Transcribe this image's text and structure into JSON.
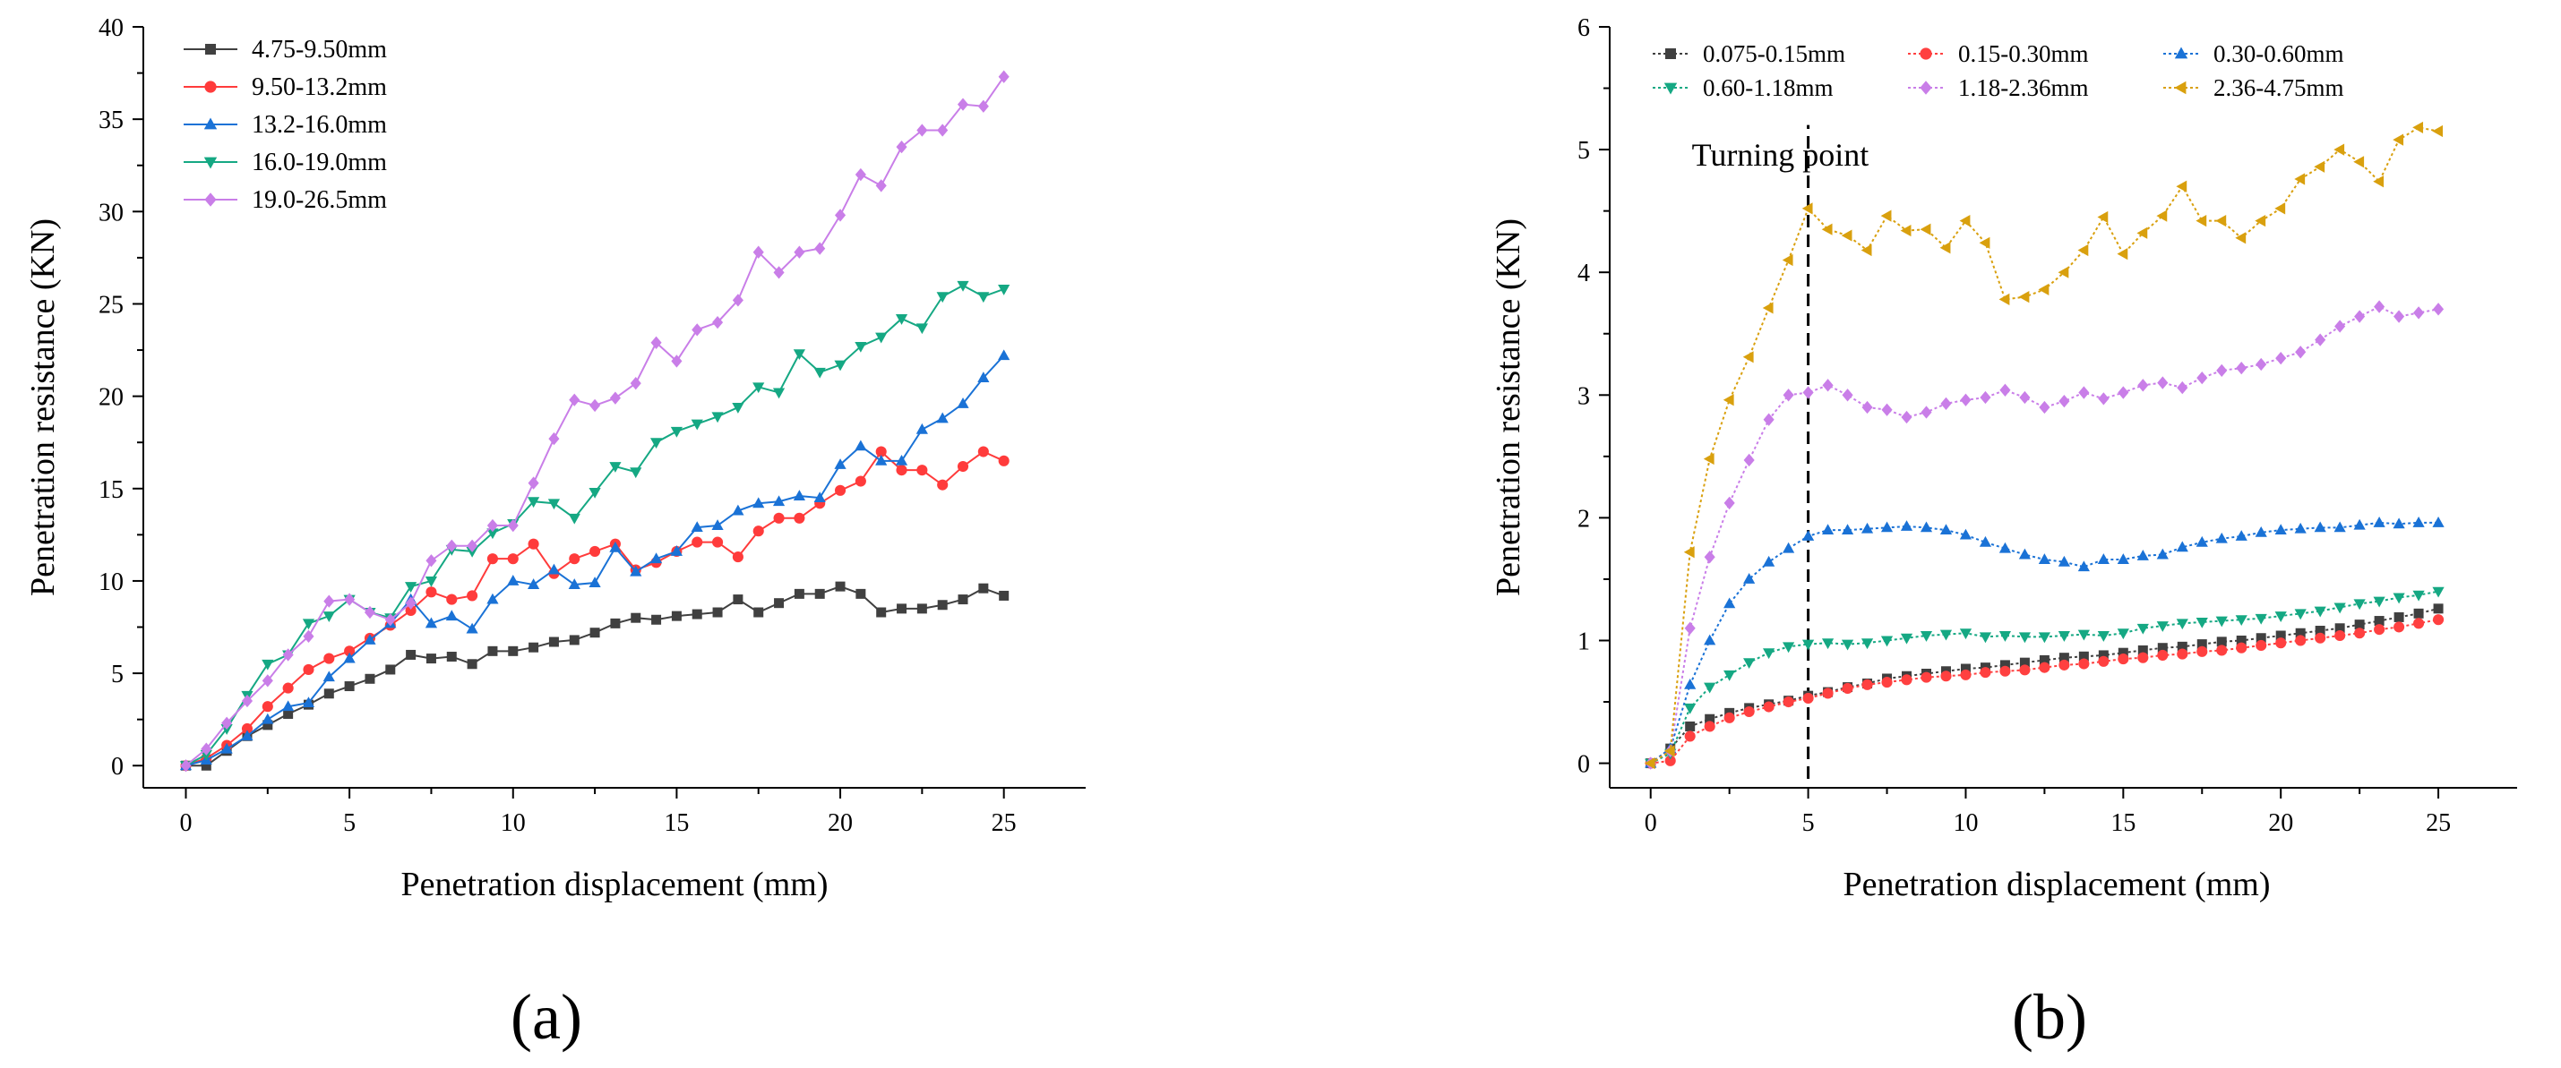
{
  "panels": [
    {
      "label": "(a)"
    },
    {
      "label": "(b)"
    }
  ],
  "chart_data": [
    {
      "type": "line",
      "title": "",
      "xlabel": "Penetration displacement (mm)",
      "ylabel": "Penetration resistance (KN)",
      "xlim": [
        -1.3,
        27.5
      ],
      "ylim": [
        -1.2,
        40
      ],
      "xticks": [
        0,
        5,
        10,
        15,
        20,
        25
      ],
      "yticks": [
        0,
        5,
        10,
        15,
        20,
        25,
        30,
        35,
        40
      ],
      "grid": false,
      "legend_position": "top-left",
      "x": [
        0,
        0.625,
        1.25,
        1.875,
        2.5,
        3.125,
        3.75,
        4.375,
        5,
        5.625,
        6.25,
        6.875,
        7.5,
        8.125,
        8.75,
        9.375,
        10,
        10.625,
        11.25,
        11.875,
        12.5,
        13.125,
        13.75,
        14.375,
        15,
        15.625,
        16.25,
        16.875,
        17.5,
        18.125,
        18.75,
        19.375,
        20,
        20.625,
        21.25,
        21.875,
        22.5,
        23.125,
        23.75,
        24.375,
        25
      ],
      "series": [
        {
          "name": "4.75-9.50mm",
          "color": "#404040",
          "marker": "square",
          "values": [
            0,
            0,
            0.8,
            1.6,
            2.2,
            2.8,
            3.3,
            3.9,
            4.3,
            4.7,
            5.2,
            6.0,
            5.8,
            5.9,
            5.5,
            6.2,
            6.2,
            6.4,
            6.7,
            6.8,
            7.2,
            7.7,
            8.0,
            7.9,
            8.1,
            8.2,
            8.3,
            9.0,
            8.3,
            8.8,
            9.3,
            9.3,
            9.7,
            9.3,
            8.3,
            8.5,
            8.5,
            8.7,
            9.0,
            9.6,
            9.2
          ]
        },
        {
          "name": "9.50-13.2mm",
          "color": "#ff3b3b",
          "marker": "circle",
          "values": [
            0,
            0.4,
            1.1,
            2.0,
            3.2,
            4.2,
            5.2,
            5.8,
            6.2,
            6.9,
            7.6,
            8.4,
            9.4,
            9.0,
            9.2,
            11.2,
            11.2,
            12.0,
            10.4,
            11.2,
            11.6,
            12.0,
            10.6,
            11.0,
            11.6,
            12.1,
            12.1,
            11.3,
            12.7,
            13.4,
            13.4,
            14.2,
            14.9,
            15.4,
            17.0,
            16.0,
            16.0,
            15.2,
            16.2,
            17.0,
            16.5
          ]
        },
        {
          "name": "13.2-16.0mm",
          "color": "#1a72d6",
          "marker": "triangle-up",
          "values": [
            0,
            0.3,
            0.9,
            1.6,
            2.5,
            3.2,
            3.4,
            4.8,
            5.8,
            6.8,
            7.7,
            9.0,
            7.7,
            8.1,
            7.4,
            9.0,
            10.0,
            9.8,
            10.6,
            9.8,
            9.9,
            11.8,
            10.5,
            11.2,
            11.6,
            12.9,
            13.0,
            13.8,
            14.2,
            14.3,
            14.6,
            14.5,
            16.3,
            17.3,
            16.5,
            16.5,
            18.2,
            18.8,
            19.6,
            21.0,
            22.2
          ]
        },
        {
          "name": "16.0-19.0mm",
          "color": "#15a883",
          "marker": "triangle-down",
          "values": [
            0,
            0.6,
            2.0,
            3.8,
            5.5,
            6.0,
            7.7,
            8.1,
            9.0,
            8.3,
            8.0,
            9.7,
            10.0,
            11.7,
            11.6,
            12.6,
            13.1,
            14.3,
            14.2,
            13.4,
            14.8,
            16.2,
            15.9,
            17.5,
            18.1,
            18.5,
            18.9,
            19.4,
            20.5,
            20.2,
            22.3,
            21.3,
            21.7,
            22.7,
            23.2,
            24.2,
            23.7,
            25.4,
            26.0,
            25.4,
            25.8
          ]
        },
        {
          "name": "19.0-26.5mm",
          "color": "#c97ee8",
          "marker": "diamond",
          "values": [
            0,
            0.9,
            2.3,
            3.5,
            4.6,
            6.0,
            7.0,
            8.9,
            9.0,
            8.3,
            7.9,
            8.8,
            11.1,
            11.9,
            11.9,
            13.0,
            13.0,
            15.3,
            17.7,
            19.8,
            19.5,
            19.9,
            20.7,
            22.9,
            21.9,
            23.6,
            24.0,
            25.2,
            27.8,
            26.7,
            27.8,
            28.0,
            29.8,
            32.0,
            31.4,
            33.5,
            34.4,
            34.4,
            35.8,
            35.7,
            37.3
          ]
        }
      ]
    },
    {
      "type": "line",
      "title": "",
      "xlabel": "Penetration displacement (mm)",
      "ylabel": "Penetration resistance (KN)",
      "xlim": [
        -1.3,
        27.5
      ],
      "ylim": [
        -0.2,
        6
      ],
      "xticks": [
        0,
        5,
        10,
        15,
        20,
        25
      ],
      "yticks": [
        0,
        1,
        2,
        3,
        4,
        5,
        6
      ],
      "grid": false,
      "legend_position": "top",
      "annotation": {
        "text": "Turning point",
        "x": 5
      },
      "x": [
        0,
        0.625,
        1.25,
        1.875,
        2.5,
        3.125,
        3.75,
        4.375,
        5,
        5.625,
        6.25,
        6.875,
        7.5,
        8.125,
        8.75,
        9.375,
        10,
        10.625,
        11.25,
        11.875,
        12.5,
        13.125,
        13.75,
        14.375,
        15,
        15.625,
        16.25,
        16.875,
        17.5,
        18.125,
        18.75,
        19.375,
        20,
        20.625,
        21.25,
        21.875,
        22.5,
        23.125,
        23.75,
        24.375,
        25
      ],
      "series": [
        {
          "name": "0.075-0.15mm",
          "color": "#404040",
          "marker": "square",
          "values": [
            0,
            0.12,
            0.3,
            0.36,
            0.41,
            0.45,
            0.48,
            0.51,
            0.55,
            0.58,
            0.62,
            0.65,
            0.69,
            0.71,
            0.73,
            0.75,
            0.77,
            0.78,
            0.8,
            0.82,
            0.84,
            0.86,
            0.87,
            0.88,
            0.9,
            0.92,
            0.94,
            0.95,
            0.97,
            0.99,
            1.0,
            1.02,
            1.04,
            1.06,
            1.08,
            1.1,
            1.13,
            1.16,
            1.19,
            1.22,
            1.26
          ]
        },
        {
          "name": "0.15-0.30mm",
          "color": "#ff4040",
          "marker": "circle",
          "values": [
            0,
            0.02,
            0.22,
            0.3,
            0.37,
            0.42,
            0.46,
            0.5,
            0.53,
            0.57,
            0.61,
            0.64,
            0.66,
            0.68,
            0.7,
            0.71,
            0.72,
            0.74,
            0.75,
            0.76,
            0.78,
            0.8,
            0.81,
            0.83,
            0.85,
            0.86,
            0.88,
            0.89,
            0.91,
            0.92,
            0.94,
            0.96,
            0.98,
            1.0,
            1.02,
            1.04,
            1.06,
            1.09,
            1.11,
            1.14,
            1.17
          ]
        },
        {
          "name": "0.30-0.60mm",
          "color": "#1a72d6",
          "marker": "triangle-up",
          "values": [
            0,
            0.12,
            0.64,
            1.0,
            1.3,
            1.5,
            1.64,
            1.75,
            1.85,
            1.9,
            1.9,
            1.91,
            1.92,
            1.93,
            1.92,
            1.9,
            1.86,
            1.8,
            1.75,
            1.7,
            1.66,
            1.64,
            1.6,
            1.66,
            1.66,
            1.69,
            1.7,
            1.76,
            1.8,
            1.83,
            1.85,
            1.88,
            1.9,
            1.91,
            1.92,
            1.92,
            1.94,
            1.96,
            1.95,
            1.96,
            1.96
          ]
        },
        {
          "name": "0.60-1.18mm",
          "color": "#15a883",
          "marker": "triangle-down",
          "values": [
            0,
            0.08,
            0.45,
            0.62,
            0.72,
            0.82,
            0.9,
            0.95,
            0.97,
            0.98,
            0.97,
            0.98,
            1.0,
            1.02,
            1.04,
            1.05,
            1.06,
            1.03,
            1.04,
            1.03,
            1.03,
            1.04,
            1.05,
            1.04,
            1.06,
            1.1,
            1.12,
            1.14,
            1.15,
            1.16,
            1.17,
            1.18,
            1.2,
            1.22,
            1.24,
            1.27,
            1.3,
            1.32,
            1.35,
            1.37,
            1.4
          ]
        },
        {
          "name": "1.18-2.36mm",
          "color": "#c97ee8",
          "marker": "diamond",
          "values": [
            0,
            0.1,
            1.1,
            1.68,
            2.12,
            2.47,
            2.8,
            3.0,
            3.02,
            3.08,
            3.0,
            2.9,
            2.88,
            2.82,
            2.86,
            2.93,
            2.96,
            2.98,
            3.04,
            2.98,
            2.9,
            2.95,
            3.02,
            2.97,
            3.02,
            3.08,
            3.1,
            3.06,
            3.14,
            3.2,
            3.22,
            3.25,
            3.3,
            3.35,
            3.45,
            3.56,
            3.64,
            3.72,
            3.64,
            3.67,
            3.7
          ]
        },
        {
          "name": "2.36-4.75mm",
          "color": "#d9a00e",
          "marker": "triangle-left",
          "values": [
            0,
            0.1,
            1.72,
            2.48,
            2.96,
            3.31,
            3.71,
            4.1,
            4.52,
            4.35,
            4.3,
            4.18,
            4.46,
            4.34,
            4.35,
            4.2,
            4.42,
            4.24,
            3.78,
            3.8,
            3.86,
            4.0,
            4.18,
            4.45,
            4.15,
            4.32,
            4.46,
            4.7,
            4.42,
            4.42,
            4.28,
            4.42,
            4.52,
            4.76,
            4.86,
            5.0,
            4.9,
            4.74,
            5.08,
            5.18,
            5.15
          ]
        }
      ]
    }
  ]
}
